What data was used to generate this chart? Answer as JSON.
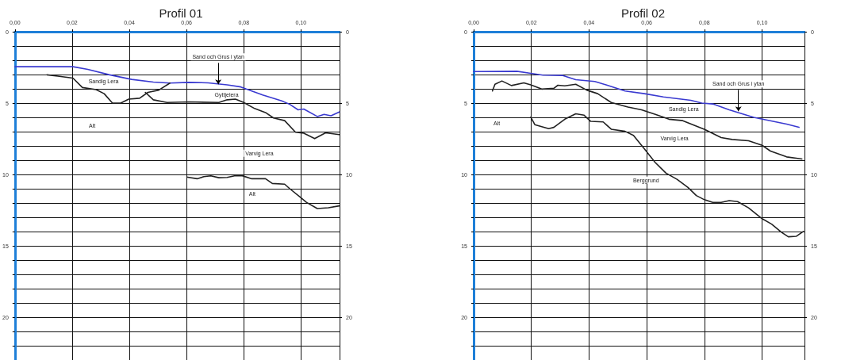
{
  "chart_data": [
    {
      "type": "line",
      "title": "Profil 01",
      "xlim": [
        0,
        0.1135
      ],
      "ylim": [
        23,
        0
      ],
      "y2lim": [
        23,
        0
      ],
      "xticks": [
        {
          "value": 0,
          "label": "0,00"
        },
        {
          "value": 0.02,
          "label": "0,02"
        },
        {
          "value": 0.04,
          "label": "0,04"
        },
        {
          "value": 0.06,
          "label": "0,06"
        },
        {
          "value": 0.08,
          "label": "0,08"
        },
        {
          "value": 0.1,
          "label": "0,10"
        }
      ],
      "yticks": [
        0,
        {
          "value": 1,
          "label": null
        },
        {
          "value": 2,
          "label": null
        },
        {
          "value": 3,
          "label": null
        },
        {
          "value": 4,
          "label": null
        },
        5,
        {
          "value": 6,
          "label": null
        },
        {
          "value": 7,
          "label": null
        },
        {
          "value": 8,
          "label": null
        },
        {
          "value": 9,
          "label": null
        },
        10,
        {
          "value": 11,
          "label": null
        },
        {
          "value": 12,
          "label": null
        },
        {
          "value": 13,
          "label": null
        },
        {
          "value": 14,
          "label": null
        },
        15,
        {
          "value": 16,
          "label": null
        },
        {
          "value": 17,
          "label": null
        },
        {
          "value": 18,
          "label": null
        },
        {
          "value": 19,
          "label": null
        },
        20,
        {
          "value": 21,
          "label": null
        },
        {
          "value": 22,
          "label": null
        },
        {
          "value": 23,
          "label": null
        }
      ],
      "y2ticks": [
        0,
        5,
        10,
        15,
        20
      ],
      "grid": true,
      "marker": "none",
      "line_style": "solid",
      "series": [
        {
          "color": "#3a3ad0",
          "x": [
            0,
            0.0203,
            0.0255,
            0.0331,
            0.0408,
            0.0484,
            0.0542,
            0.0608,
            0.0675,
            0.0742,
            0.079,
            0.0809,
            0.0866,
            0.0933,
            0.0961,
            0.099,
            0.101,
            0.1057,
            0.1081,
            0.1105,
            0.1134
          ],
          "values": [
            2.45,
            2.45,
            2.64,
            3.02,
            3.34,
            3.53,
            3.6,
            3.55,
            3.58,
            3.72,
            3.87,
            4.02,
            4.43,
            4.85,
            5.09,
            5.47,
            5.42,
            5.94,
            5.79,
            5.89,
            5.62
          ]
        },
        {
          "color": "#222222",
          "x": [
            0.0112,
            0.015,
            0.0203,
            0.0236,
            0.0284,
            0.0312,
            0.0341,
            0.037,
            0.0398,
            0.0436,
            0.0465,
            0.0503,
            0.0542
          ],
          "values": [
            3.02,
            3.11,
            3.25,
            3.91,
            4.06,
            4.34,
            5.0,
            5.0,
            4.72,
            4.66,
            4.25,
            4.09,
            3.6
          ]
        },
        {
          "color": "#222222",
          "x": [
            0.0456,
            0.0484,
            0.0532,
            0.0608,
            0.0713,
            0.0742,
            0.0771,
            0.08,
            0.0838,
            0.0876,
            0.0904,
            0.0943,
            0.0981,
            0.101,
            0.1048,
            0.1086,
            0.1134
          ],
          "values": [
            4.25,
            4.77,
            4.96,
            4.92,
            4.96,
            4.77,
            4.72,
            4.96,
            5.38,
            5.66,
            6.04,
            6.23,
            7.04,
            7.11,
            7.49,
            7.08,
            7.21
          ]
        },
        {
          "color": "#222222",
          "x": [
            0.0604,
            0.0637,
            0.0661,
            0.0685,
            0.0713,
            0.0742,
            0.0771,
            0.0795,
            0.0828,
            0.0876,
            0.09,
            0.0943,
            0.0961,
            0.1,
            0.1019,
            0.1057,
            0.1096,
            0.1134
          ],
          "values": [
            10.19,
            10.3,
            10.15,
            10.1,
            10.23,
            10.21,
            10.08,
            10.09,
            10.3,
            10.3,
            10.63,
            10.68,
            11.0,
            11.63,
            11.95,
            12.39,
            12.33,
            12.2
          ]
        }
      ],
      "annotations": [
        {
          "text": "Sand och Grus i ytan",
          "x": 0.0711,
          "y": 3.68
        },
        "Sandig Lera",
        "Gyttjelera",
        "Alt",
        "Varvig Lera",
        "Alt"
      ]
    },
    {
      "type": "line",
      "title": "Profil 02",
      "xlim": [
        0,
        0.1147
      ],
      "ylim": [
        23,
        0
      ],
      "y2lim": [
        23,
        0
      ],
      "xticks": [
        {
          "value": 0,
          "label": "0,00"
        },
        {
          "value": 0.02,
          "label": "0,02"
        },
        {
          "value": 0.04,
          "label": "0,04"
        },
        {
          "value": 0.06,
          "label": "0,06"
        },
        {
          "value": 0.08,
          "label": "0,08"
        },
        {
          "value": 0.1,
          "label": "0,10"
        }
      ],
      "yticks": [
        0,
        {
          "value": 1,
          "label": null
        },
        {
          "value": 2,
          "label": null
        },
        {
          "value": 3,
          "label": null
        },
        {
          "value": 4,
          "label": null
        },
        5,
        {
          "value": 6,
          "label": null
        },
        {
          "value": 7,
          "label": null
        },
        {
          "value": 8,
          "label": null
        },
        {
          "value": 9,
          "label": null
        },
        10,
        {
          "value": 11,
          "label": null
        },
        {
          "value": 12,
          "label": null
        },
        {
          "value": 13,
          "label": null
        },
        {
          "value": 14,
          "label": null
        },
        15,
        {
          "value": 16,
          "label": null
        },
        {
          "value": 17,
          "label": null
        },
        {
          "value": 18,
          "label": null
        },
        {
          "value": 19,
          "label": null
        },
        20,
        {
          "value": 21,
          "label": null
        },
        {
          "value": 22,
          "label": null
        },
        {
          "value": 23,
          "label": null
        }
      ],
      "y2ticks": [
        0,
        5,
        10,
        15,
        20
      ],
      "grid": true,
      "marker": "none",
      "line_style": "solid",
      "series": [
        {
          "color": "#3a3ad0",
          "x": [
            0,
            0.015,
            0.0198,
            0.024,
            0.0307,
            0.0354,
            0.042,
            0.0459,
            0.0525,
            0.0592,
            0.0658,
            0.0753,
            0.0791,
            0.0829,
            0.0886,
            0.0971,
            0.1085,
            0.1128
          ],
          "values": [
            2.79,
            2.77,
            2.92,
            3.04,
            3.06,
            3.36,
            3.49,
            3.72,
            4.15,
            4.34,
            4.57,
            4.81,
            5.0,
            5.06,
            5.47,
            6.0,
            6.47,
            6.7
          ]
        },
        {
          "color": "#222222",
          "x": [
            0.0065,
            0.0074,
            0.0098,
            0.0131,
            0.0174,
            0.0198,
            0.0236,
            0.0278,
            0.0292,
            0.0316,
            0.0354,
            0.0392,
            0.043,
            0.0477,
            0.0535,
            0.0582,
            0.063,
            0.0677,
            0.0725,
            0.0801,
            0.0858,
            0.0896,
            0.0953,
            0.1,
            0.1029,
            0.1085,
            0.1138
          ],
          "values": [
            4.15,
            3.68,
            3.45,
            3.77,
            3.58,
            3.72,
            4.02,
            3.96,
            3.75,
            3.79,
            3.68,
            4.09,
            4.34,
            4.96,
            5.28,
            5.47,
            5.79,
            6.13,
            6.23,
            6.85,
            7.42,
            7.55,
            7.64,
            7.96,
            8.36,
            8.77,
            8.92
          ]
        },
        {
          "color": "#222222",
          "x": [
            0.0198,
            0.0212,
            0.026,
            0.0278,
            0.0316,
            0.0354,
            0.0383,
            0.0406,
            0.0449,
            0.0477,
            0.0525,
            0.0554,
            0.0592,
            0.0629,
            0.0667,
            0.0705,
            0.0743,
            0.0772,
            0.08,
            0.0829,
            0.0858,
            0.0886,
            0.0915,
            0.0953,
            0.1,
            0.1033,
            0.1067,
            0.1091,
            0.1119,
            0.1143
          ],
          "values": [
            5.98,
            6.51,
            6.79,
            6.7,
            6.13,
            5.75,
            5.85,
            6.28,
            6.32,
            6.83,
            6.98,
            7.26,
            8.21,
            9.15,
            9.91,
            10.34,
            10.91,
            11.48,
            11.77,
            11.96,
            11.96,
            11.83,
            11.9,
            12.34,
            13.1,
            13.48,
            14.05,
            14.37,
            14.33,
            13.99
          ]
        }
      ],
      "annotations": [
        {
          "text": "Sand och Grus i ytan",
          "x": 0.0918,
          "y": 5.57
        },
        "Sandig Lera",
        "Alt",
        "Varvig Lera",
        "Berggrund"
      ]
    }
  ]
}
